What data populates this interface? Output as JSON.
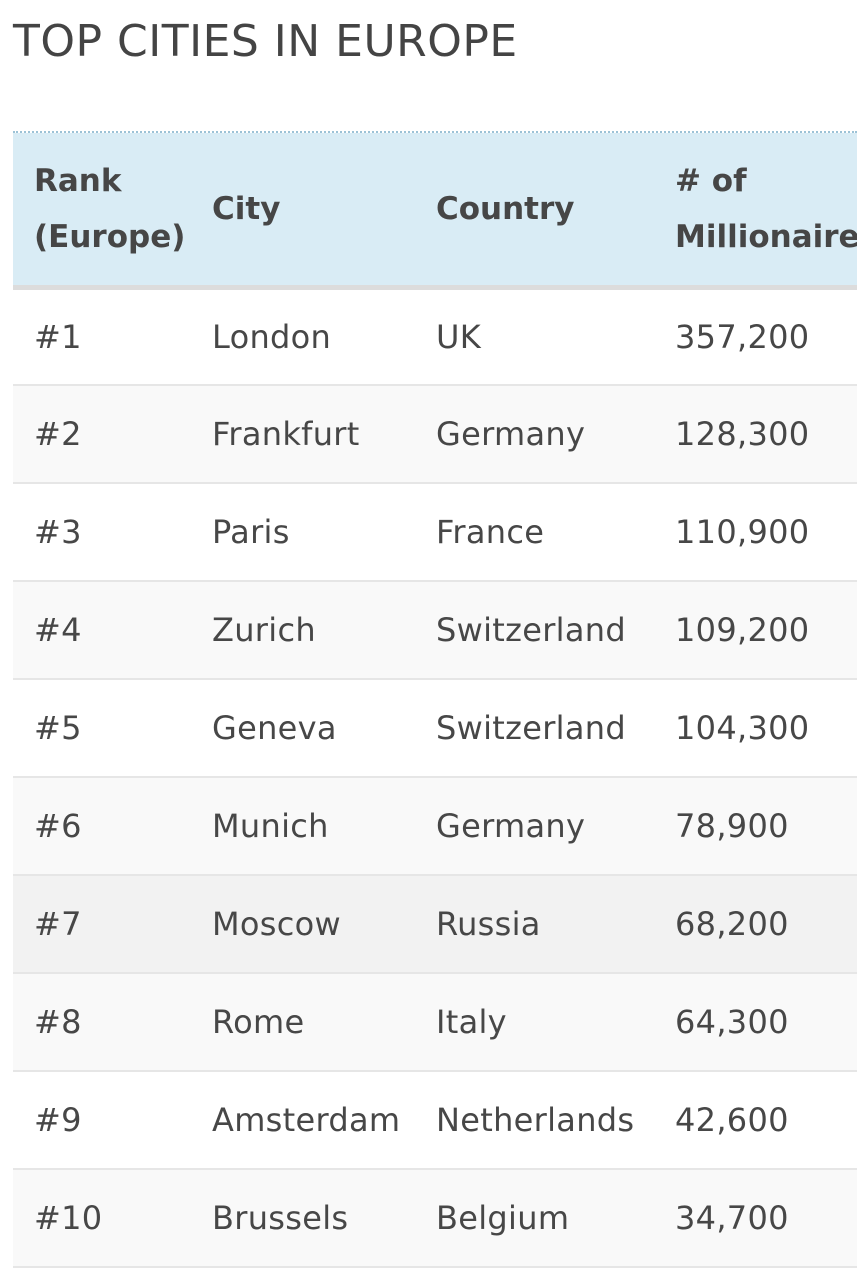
{
  "page": {
    "title": "TOP CITIES IN EUROPE"
  },
  "table": {
    "headers": {
      "rank_line1": "Rank",
      "rank_line2": "(Europe)",
      "city": "City",
      "country": "Country",
      "millionaires_line1": "# of",
      "millionaires_line2": "Millionaires"
    },
    "rows": [
      {
        "rank": "#1",
        "city": "London",
        "country": "UK",
        "millionaires": "357,200"
      },
      {
        "rank": "#2",
        "city": "Frankfurt",
        "country": "Germany",
        "millionaires": "128,300"
      },
      {
        "rank": "#3",
        "city": "Paris",
        "country": "France",
        "millionaires": "110,900"
      },
      {
        "rank": "#4",
        "city": "Zurich",
        "country": "Switzerland",
        "millionaires": "109,200"
      },
      {
        "rank": "#5",
        "city": "Geneva",
        "country": "Switzerland",
        "millionaires": "104,300"
      },
      {
        "rank": "#6",
        "city": "Munich",
        "country": "Germany",
        "millionaires": "78,900"
      },
      {
        "rank": "#7",
        "city": "Moscow",
        "country": "Russia",
        "millionaires": "68,200"
      },
      {
        "rank": "#8",
        "city": "Rome",
        "country": "Italy",
        "millionaires": "64,300"
      },
      {
        "rank": "#9",
        "city": "Amsterdam",
        "country": "Netherlands",
        "millionaires": "42,600"
      },
      {
        "rank": "#10",
        "city": "Brussels",
        "country": "Belgium",
        "millionaires": "34,700"
      }
    ]
  },
  "colors": {
    "header_background": "#d9ecf5",
    "text": "#444444",
    "row_alt": "#f9f9f9",
    "row_highlight": "#f2f2f2"
  }
}
